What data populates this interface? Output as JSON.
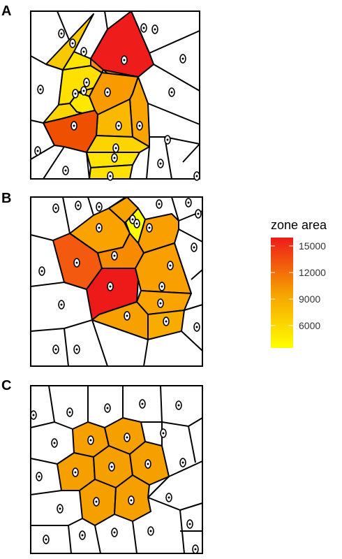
{
  "panels": [
    {
      "label": "A"
    },
    {
      "label": "B"
    },
    {
      "label": "C"
    }
  ],
  "legend": {
    "title": "zone area",
    "ticks": [
      "15000",
      "12000",
      "9000",
      "6000"
    ],
    "colors": {
      "high": "#ee1a1a",
      "mid": "#f6a000",
      "low": "#ffff00"
    },
    "range": [
      4000,
      16000
    ]
  },
  "colors": {
    "empty_cell": "#ffffff",
    "border": "#000000"
  }
}
